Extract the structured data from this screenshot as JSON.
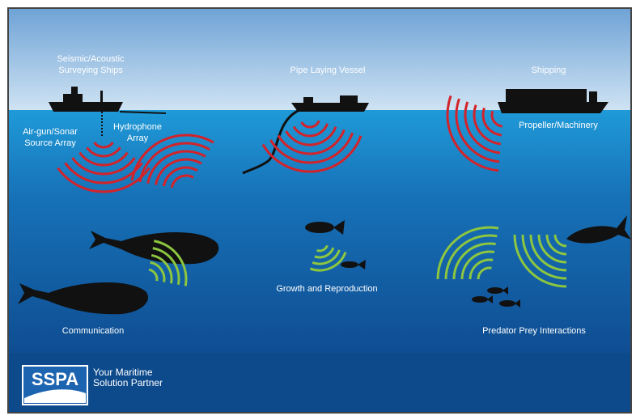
{
  "labels": {
    "seismic_ships": [
      "Seismic/Acoustic",
      "Surveying Ships"
    ],
    "pipe_vessel": [
      "Pipe Laying Vessel"
    ],
    "shipping": [
      "Shipping"
    ],
    "airgun": [
      "Air-gun/Sonar",
      "Source Array"
    ],
    "hydrophone": [
      "Hydrophone",
      "Array"
    ],
    "propeller": [
      "Propeller/Machinery"
    ],
    "growth": [
      "Growth and Reproduction"
    ],
    "communication": [
      "Communication"
    ],
    "predator": [
      "Predator Prey Interactions"
    ]
  },
  "logo": {
    "mark": "SSPA",
    "tagline": [
      "Your Maritime",
      "Solution Partner"
    ]
  }
}
